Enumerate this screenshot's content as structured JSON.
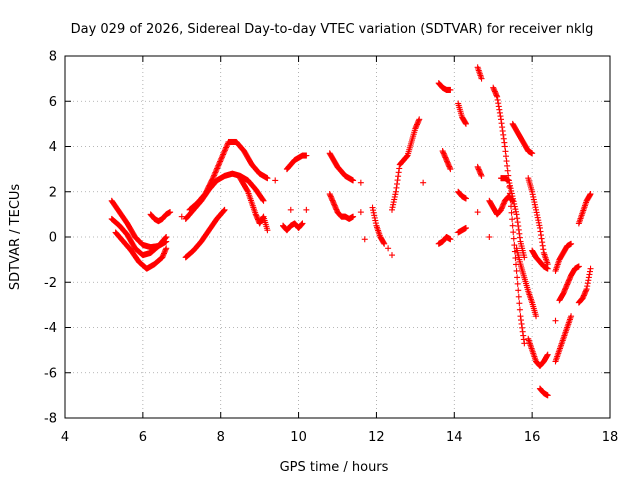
{
  "chart_data": {
    "type": "scatter",
    "title": "Day 029 of 2026, Sidereal Day-to-day VTEC variation (SDTVAR) for receiver nklg",
    "xlabel": "GPS time / hours",
    "ylabel": "SDTVAR / TECUs",
    "xlim": [
      4,
      18
    ],
    "ylim": [
      -8,
      8
    ],
    "xticks": [
      4,
      6,
      8,
      10,
      12,
      14,
      16,
      18
    ],
    "yticks": [
      -8,
      -6,
      -4,
      -2,
      0,
      2,
      4,
      6,
      8
    ],
    "grid": true,
    "marker": "plus",
    "color": "#ff0000",
    "tracks": [
      {
        "x": [
          5.2,
          5.4,
          5.6,
          5.8,
          6.0,
          6.2,
          6.4,
          6.6
        ],
        "y": [
          1.6,
          1.1,
          0.6,
          0.0,
          -0.35,
          -0.45,
          -0.4,
          -0.2
        ]
      },
      {
        "x": [
          5.2,
          5.4,
          5.6,
          5.8,
          6.0,
          6.2,
          6.4,
          6.6
        ],
        "y": [
          0.8,
          0.5,
          0.1,
          -0.5,
          -0.8,
          -0.7,
          -0.4,
          0.0
        ]
      },
      {
        "x": [
          5.3,
          5.5,
          5.7,
          5.9,
          6.1,
          6.3,
          6.5,
          6.6
        ],
        "y": [
          0.2,
          -0.2,
          -0.6,
          -1.1,
          -1.4,
          -1.2,
          -0.9,
          -0.5
        ]
      },
      {
        "x": [
          6.2,
          6.3,
          6.4,
          6.5,
          6.6,
          6.7
        ],
        "y": [
          1.0,
          0.8,
          0.7,
          0.8,
          1.0,
          1.1
        ]
      },
      {
        "x": [
          7.1,
          7.3,
          7.5,
          7.7,
          7.9,
          8.1,
          8.3,
          8.5,
          8.7,
          8.9,
          9.1
        ],
        "y": [
          0.8,
          1.2,
          1.6,
          2.1,
          2.5,
          2.7,
          2.8,
          2.7,
          2.5,
          2.1,
          1.6
        ]
      },
      {
        "x": [
          7.2,
          7.4,
          7.6,
          7.8,
          8.0,
          8.2,
          8.4,
          8.6,
          8.8,
          9.0,
          9.2
        ],
        "y": [
          1.2,
          1.5,
          1.9,
          2.6,
          3.4,
          4.2,
          4.2,
          3.8,
          3.2,
          2.8,
          2.6
        ]
      },
      {
        "x": [
          7.1,
          7.3,
          7.5,
          7.7,
          7.9,
          8.1
        ],
        "y": [
          -0.9,
          -0.6,
          -0.2,
          0.3,
          0.8,
          1.2
        ]
      },
      {
        "x": [
          8.5,
          8.7,
          8.9,
          9.0,
          9.1,
          9.2
        ],
        "y": [
          2.6,
          2.0,
          1.0,
          0.6,
          0.9,
          0.3
        ]
      },
      {
        "x": [
          9.6,
          9.7,
          9.8,
          9.9,
          10.0,
          10.1
        ],
        "y": [
          0.5,
          0.3,
          0.5,
          0.6,
          0.4,
          0.6
        ]
      },
      {
        "x": [
          9.7,
          9.8,
          9.9,
          10.0,
          10.1,
          10.2
        ],
        "y": [
          3.0,
          3.2,
          3.4,
          3.5,
          3.6,
          3.6
        ]
      },
      {
        "x": [
          10.8,
          10.9,
          11.0,
          11.1,
          11.2,
          11.3,
          11.4
        ],
        "y": [
          3.7,
          3.4,
          3.1,
          2.9,
          2.7,
          2.6,
          2.5
        ]
      },
      {
        "x": [
          10.8,
          10.9,
          11.0,
          11.1,
          11.2,
          11.3,
          11.4
        ],
        "y": [
          1.9,
          1.5,
          1.1,
          0.9,
          0.9,
          0.8,
          0.9
        ]
      },
      {
        "x": [
          11.9,
          12.0,
          12.1,
          12.2
        ],
        "y": [
          1.3,
          0.5,
          0.0,
          -0.3
        ]
      },
      {
        "x": [
          12.4,
          12.5,
          12.6,
          12.8,
          12.9,
          13.0,
          13.1
        ],
        "y": [
          1.2,
          2.0,
          3.2,
          3.6,
          4.2,
          4.8,
          5.2
        ]
      },
      {
        "x": [
          13.6,
          13.7,
          13.8,
          13.9
        ],
        "y": [
          6.8,
          6.6,
          6.5,
          6.5
        ]
      },
      {
        "x": [
          13.6,
          13.7,
          13.8,
          13.9
        ],
        "y": [
          -0.3,
          -0.2,
          0.0,
          -0.1
        ]
      },
      {
        "x": [
          13.7,
          13.8,
          13.9
        ],
        "y": [
          3.8,
          3.4,
          3.0
        ]
      },
      {
        "x": [
          14.1,
          14.2,
          14.3
        ],
        "y": [
          5.9,
          5.3,
          5.0
        ]
      },
      {
        "x": [
          14.1,
          14.2,
          14.3
        ],
        "y": [
          0.2,
          0.3,
          0.4
        ]
      },
      {
        "x": [
          14.1,
          14.2,
          14.3
        ],
        "y": [
          2.0,
          1.8,
          1.7
        ]
      },
      {
        "x": [
          14.6,
          14.7
        ],
        "y": [
          7.5,
          7.0
        ]
      },
      {
        "x": [
          14.6,
          14.7
        ],
        "y": [
          3.1,
          2.7
        ]
      },
      {
        "x": [
          14.9,
          15.0,
          15.1,
          15.2,
          15.3,
          15.4,
          15.5
        ],
        "y": [
          1.6,
          1.3,
          1.0,
          1.2,
          1.6,
          1.8,
          1.6
        ]
      },
      {
        "x": [
          15.0,
          15.1,
          15.2,
          15.3,
          15.4,
          15.5,
          15.6,
          15.7,
          15.8
        ],
        "y": [
          6.6,
          6.2,
          5.2,
          4.0,
          2.5,
          0.5,
          -1.5,
          -3.5,
          -4.7
        ]
      },
      {
        "x": [
          15.2,
          15.3,
          15.4,
          15.6,
          15.7,
          15.8
        ],
        "y": [
          2.6,
          2.6,
          2.5,
          1.0,
          -0.2,
          -0.9
        ]
      },
      {
        "x": [
          15.5,
          15.6,
          15.7,
          15.8,
          15.9,
          16.0
        ],
        "y": [
          5.0,
          4.7,
          4.4,
          4.1,
          3.8,
          3.7
        ]
      },
      {
        "x": [
          15.6,
          15.7,
          15.8,
          15.9,
          16.0,
          16.1
        ],
        "y": [
          -0.5,
          -1.2,
          -1.8,
          -2.4,
          -2.9,
          -3.5
        ]
      },
      {
        "x": [
          15.9,
          16.0,
          16.1,
          16.2,
          16.3,
          16.4
        ],
        "y": [
          -4.5,
          -5.0,
          -5.5,
          -5.7,
          -5.5,
          -5.2
        ]
      },
      {
        "x": [
          15.9,
          16.0,
          16.1,
          16.2,
          16.3,
          16.4
        ],
        "y": [
          2.6,
          2.0,
          1.2,
          0.4,
          -0.7,
          -1.2
        ]
      },
      {
        "x": [
          16.0,
          16.1,
          16.2,
          16.3,
          16.4
        ],
        "y": [
          -0.6,
          -0.9,
          -1.1,
          -1.3,
          -1.4
        ]
      },
      {
        "x": [
          16.2,
          16.3,
          16.4
        ],
        "y": [
          -6.7,
          -6.9,
          -7.0
        ]
      },
      {
        "x": [
          16.6,
          16.7,
          16.8,
          16.9,
          17.0
        ],
        "y": [
          -5.5,
          -5.0,
          -4.5,
          -4.0,
          -3.5
        ]
      },
      {
        "x": [
          16.6,
          16.7,
          16.8,
          16.9,
          17.0
        ],
        "y": [
          -1.5,
          -1.0,
          -0.7,
          -0.4,
          -0.3
        ]
      },
      {
        "x": [
          16.7,
          16.8,
          16.9,
          17.0,
          17.1,
          17.2
        ],
        "y": [
          -2.8,
          -2.5,
          -2.1,
          -1.7,
          -1.4,
          -1.3
        ]
      },
      {
        "x": [
          17.2,
          17.3,
          17.4,
          17.5
        ],
        "y": [
          0.6,
          1.1,
          1.6,
          1.9
        ]
      },
      {
        "x": [
          17.2,
          17.3,
          17.4,
          17.5
        ],
        "y": [
          -2.9,
          -2.7,
          -2.3,
          -1.4
        ]
      }
    ],
    "isolated_points": {
      "x": [
        7.0,
        9.4,
        9.8,
        10.2,
        11.6,
        11.6,
        11.7,
        12.3,
        12.4,
        13.2,
        14.6,
        14.9,
        16.6
      ],
      "y": [
        0.9,
        2.5,
        1.2,
        1.2,
        2.4,
        1.1,
        -0.1,
        -0.5,
        -0.8,
        2.4,
        1.1,
        0.0,
        -3.7
      ]
    }
  }
}
